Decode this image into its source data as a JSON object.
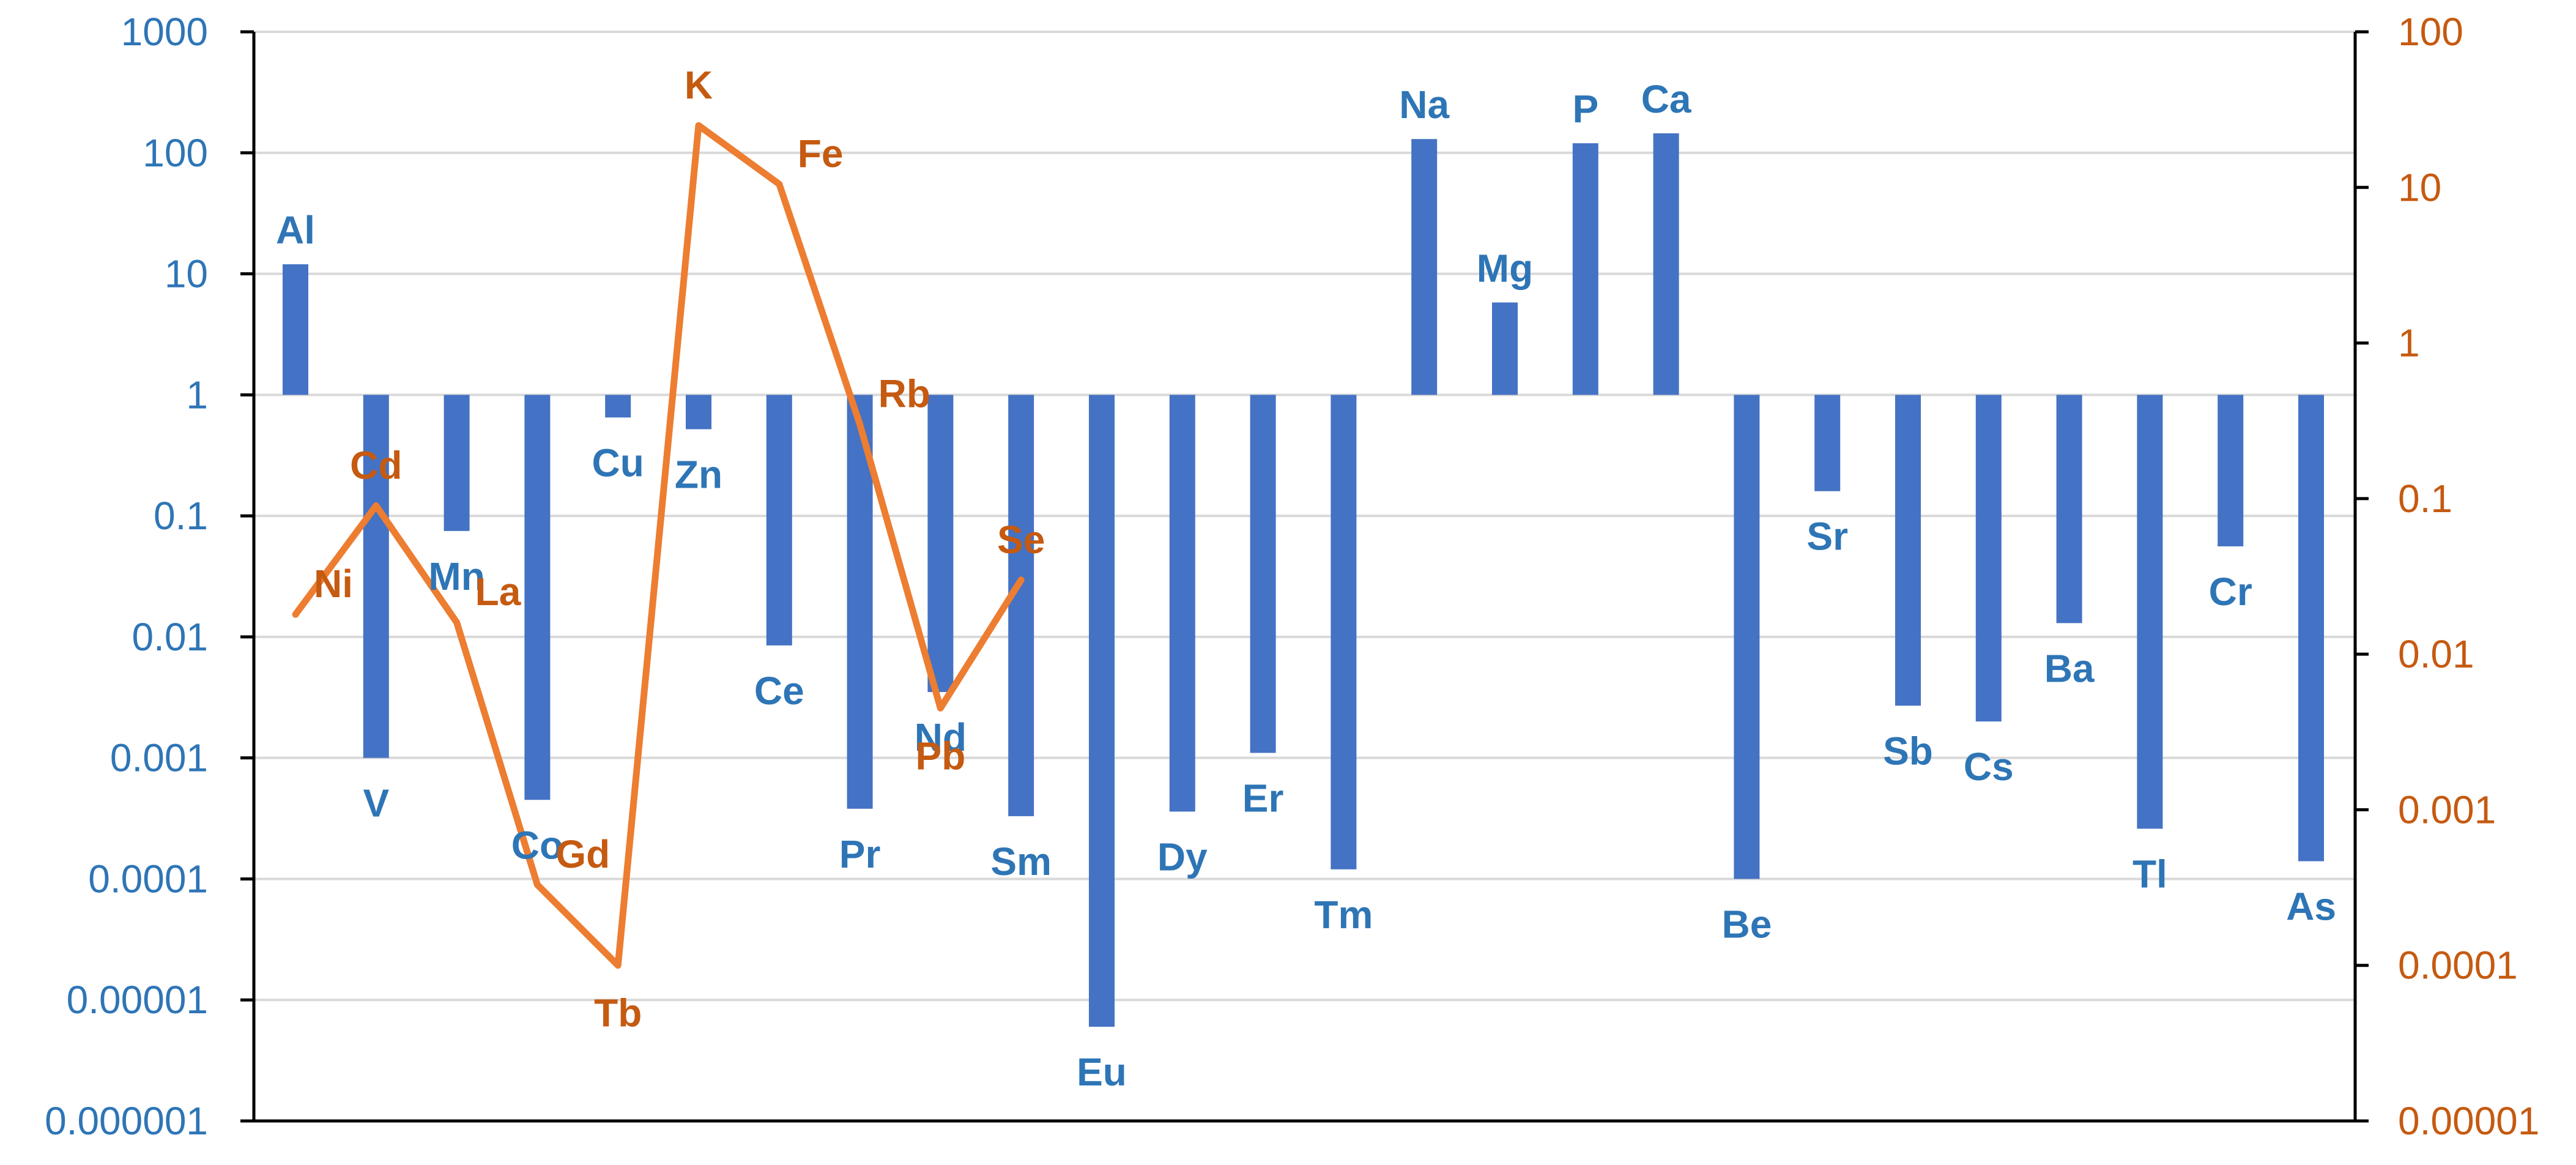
{
  "chart_data": {
    "type": "bar",
    "title": "",
    "grid": true,
    "legend": "none",
    "colors": {
      "bars": "#4472C4",
      "line": "#ED7D31",
      "left_axis_text": "#2E75B6",
      "right_axis_text": "#C55A11",
      "grid": "#D9D9D9",
      "axis": "#000000"
    },
    "y_left": {
      "scale": "log",
      "ylim": [
        1e-06,
        1000
      ],
      "baseline": 1,
      "ticks": [
        {
          "value": 1e-06,
          "label": "0.000001"
        },
        {
          "value": 1e-05,
          "label": "0.00001"
        },
        {
          "value": 0.0001,
          "label": "0.0001"
        },
        {
          "value": 0.001,
          "label": "0.001"
        },
        {
          "value": 0.01,
          "label": "0.01"
        },
        {
          "value": 0.1,
          "label": "0.1"
        },
        {
          "value": 1,
          "label": "1"
        },
        {
          "value": 10,
          "label": "10"
        },
        {
          "value": 100,
          "label": "100"
        },
        {
          "value": 1000,
          "label": "1000"
        }
      ]
    },
    "y_right": {
      "scale": "log",
      "ylim": [
        1e-05,
        100
      ],
      "ticks": [
        {
          "value": 1e-05,
          "label": "0.00001"
        },
        {
          "value": 0.0001,
          "label": "0.0001"
        },
        {
          "value": 0.001,
          "label": "0.001"
        },
        {
          "value": 0.01,
          "label": "0.01"
        },
        {
          "value": 0.1,
          "label": "0.1"
        },
        {
          "value": 1,
          "label": "1"
        },
        {
          "value": 10,
          "label": "10"
        },
        {
          "value": 100,
          "label": "100"
        }
      ]
    },
    "bar_series": {
      "name": "",
      "points": [
        {
          "label": "Al",
          "slot": 0,
          "value": 12
        },
        {
          "label": "V",
          "slot": 1,
          "value": 0.001
        },
        {
          "label": "Mn",
          "slot": 2,
          "value": 0.075
        },
        {
          "label": "Co",
          "slot": 3,
          "value": 0.00045
        },
        {
          "label": "Cu",
          "slot": 4,
          "value": 0.65
        },
        {
          "label": "Zn",
          "slot": 5,
          "value": 0.52
        },
        {
          "label": "Ce",
          "slot": 6,
          "value": 0.0085
        },
        {
          "label": "Pr",
          "slot": 7,
          "value": 0.00038
        },
        {
          "label": "Nd",
          "slot": 8,
          "value": 0.0035
        },
        {
          "label": "Sm",
          "slot": 9,
          "value": 0.00033
        },
        {
          "label": "Eu",
          "slot": 10,
          "value": 6e-06
        },
        {
          "label": "Dy",
          "slot": 11,
          "value": 0.00036
        },
        {
          "label": "Er",
          "slot": 12,
          "value": 0.0011
        },
        {
          "label": "Tm",
          "slot": 13,
          "value": 0.00012
        },
        {
          "label": "Na",
          "slot": 14,
          "value": 130
        },
        {
          "label": "Mg",
          "slot": 15,
          "value": 5.8
        },
        {
          "label": "P",
          "slot": 16,
          "value": 120
        },
        {
          "label": "Ca",
          "slot": 17,
          "value": 145
        },
        {
          "label": "Be",
          "slot": 18,
          "value": 0.0001
        },
        {
          "label": "Sr",
          "slot": 19,
          "value": 0.16
        },
        {
          "label": "Sb",
          "slot": 20,
          "value": 0.0027
        },
        {
          "label": "Cs",
          "slot": 21,
          "value": 0.002
        },
        {
          "label": "Ba",
          "slot": 22,
          "value": 0.013
        },
        {
          "label": "Tl",
          "slot": 23,
          "value": 0.00026
        },
        {
          "label": "Cr",
          "slot": 24,
          "value": 0.056
        },
        {
          "label": "As",
          "slot": 25,
          "value": 0.00014
        }
      ]
    },
    "line_series": {
      "name": "",
      "axis": "right",
      "points": [
        {
          "label": "Ni",
          "slot": 0,
          "value": 0.018
        },
        {
          "label": "Cd",
          "slot": 1,
          "value": 0.09
        },
        {
          "label": "La",
          "slot": 2,
          "value": 0.016
        },
        {
          "label": "Gd",
          "slot": 3,
          "value": 0.00033
        },
        {
          "label": "Tb",
          "slot": 4,
          "value": 0.0001
        },
        {
          "label": "K",
          "slot": 5,
          "value": 25
        },
        {
          "label": "Fe",
          "slot": 6,
          "value": 10.5
        },
        {
          "label": "Rb",
          "slot": 7,
          "value": 0.3
        },
        {
          "label": "Pb",
          "slot": 8,
          "value": 0.0045
        },
        {
          "label": "Se",
          "slot": 9,
          "value": 0.03
        }
      ]
    }
  }
}
